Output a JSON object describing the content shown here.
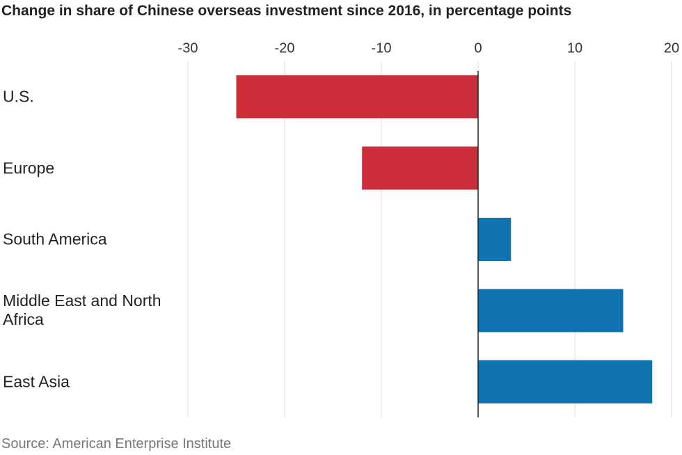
{
  "chart_data": {
    "type": "barh",
    "title": "Change in share of Chinese overseas investment since 2016, in percentage points",
    "categories": [
      "U.S.",
      "Europe",
      "South America",
      "Middle East and North Africa",
      "East Asia"
    ],
    "values": [
      -25,
      -12,
      3.4,
      15,
      18
    ],
    "colors": [
      "#cc2f3a",
      "#cc2f3a",
      "#0f73b1",
      "#0f73b1",
      "#0f73b1"
    ],
    "xlim": [
      -30,
      20
    ],
    "xticks": [
      -30,
      -20,
      -10,
      0,
      10,
      20
    ],
    "grid": true,
    "source": "Source: American Enterprise Institute"
  }
}
